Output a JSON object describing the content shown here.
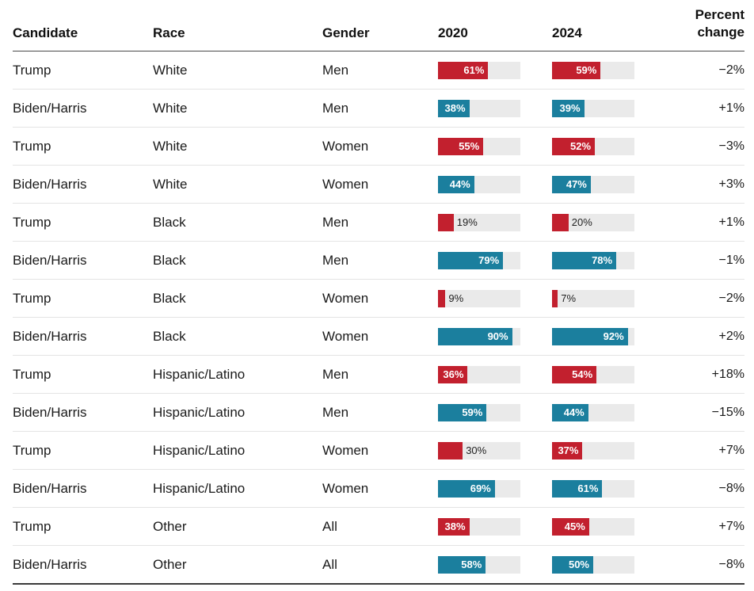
{
  "header": {
    "candidate": "Candidate",
    "race": "Race",
    "gender": "Gender",
    "y2020": "2020",
    "y2024": "2024",
    "change": "Percent\nchange"
  },
  "colors": {
    "trump": "#c2202e",
    "biden_harris": "#1b7f9e",
    "track": "#eaeaea",
    "label_inside": "#ffffff",
    "label_outside": "#222222"
  },
  "chart_data": {
    "type": "bar",
    "columns": [
      "Candidate",
      "Race",
      "Gender",
      "2020",
      "2024",
      "Percent change"
    ],
    "xlim": [
      0,
      100
    ],
    "legend_position": "none",
    "grid": false,
    "rows": [
      {
        "candidate": "Trump",
        "race": "White",
        "gender": "Men",
        "v2020": 61,
        "v2024": 59,
        "label2020": "61%",
        "label2024": "59%",
        "change": "−2%"
      },
      {
        "candidate": "Biden/Harris",
        "race": "White",
        "gender": "Men",
        "v2020": 38,
        "v2024": 39,
        "label2020": "38%",
        "label2024": "39%",
        "change": "+1%"
      },
      {
        "candidate": "Trump",
        "race": "White",
        "gender": "Women",
        "v2020": 55,
        "v2024": 52,
        "label2020": "55%",
        "label2024": "52%",
        "change": "−3%"
      },
      {
        "candidate": "Biden/Harris",
        "race": "White",
        "gender": "Women",
        "v2020": 44,
        "v2024": 47,
        "label2020": "44%",
        "label2024": "47%",
        "change": "+3%"
      },
      {
        "candidate": "Trump",
        "race": "Black",
        "gender": "Men",
        "v2020": 19,
        "v2024": 20,
        "label2020": "19%",
        "label2024": "20%",
        "change": "+1%"
      },
      {
        "candidate": "Biden/Harris",
        "race": "Black",
        "gender": "Men",
        "v2020": 79,
        "v2024": 78,
        "label2020": "79%",
        "label2024": "78%",
        "change": "−1%"
      },
      {
        "candidate": "Trump",
        "race": "Black",
        "gender": "Women",
        "v2020": 9,
        "v2024": 7,
        "label2020": "9%",
        "label2024": "7%",
        "change": "−2%"
      },
      {
        "candidate": "Biden/Harris",
        "race": "Black",
        "gender": "Women",
        "v2020": 90,
        "v2024": 92,
        "label2020": "90%",
        "label2024": "92%",
        "change": "+2%"
      },
      {
        "candidate": "Trump",
        "race": "Hispanic/Latino",
        "gender": "Men",
        "v2020": 36,
        "v2024": 54,
        "label2020": "36%",
        "label2024": "54%",
        "change": "+18%"
      },
      {
        "candidate": "Biden/Harris",
        "race": "Hispanic/Latino",
        "gender": "Men",
        "v2020": 59,
        "v2024": 44,
        "label2020": "59%",
        "label2024": "44%",
        "change": "−15%"
      },
      {
        "candidate": "Trump",
        "race": "Hispanic/Latino",
        "gender": "Women",
        "v2020": 30,
        "v2024": 37,
        "label2020": "30%",
        "label2024": "37%",
        "change": "+7%"
      },
      {
        "candidate": "Biden/Harris",
        "race": "Hispanic/Latino",
        "gender": "Women",
        "v2020": 69,
        "v2024": 61,
        "label2020": "69%",
        "label2024": "61%",
        "change": "−8%"
      },
      {
        "candidate": "Trump",
        "race": "Other",
        "gender": "All",
        "v2020": 38,
        "v2024": 45,
        "label2020": "38%",
        "label2024": "45%",
        "change": "+7%"
      },
      {
        "candidate": "Biden/Harris",
        "race": "Other",
        "gender": "All",
        "v2020": 58,
        "v2024": 50,
        "label2020": "58%",
        "label2024": "50%",
        "change": "−8%"
      }
    ]
  }
}
